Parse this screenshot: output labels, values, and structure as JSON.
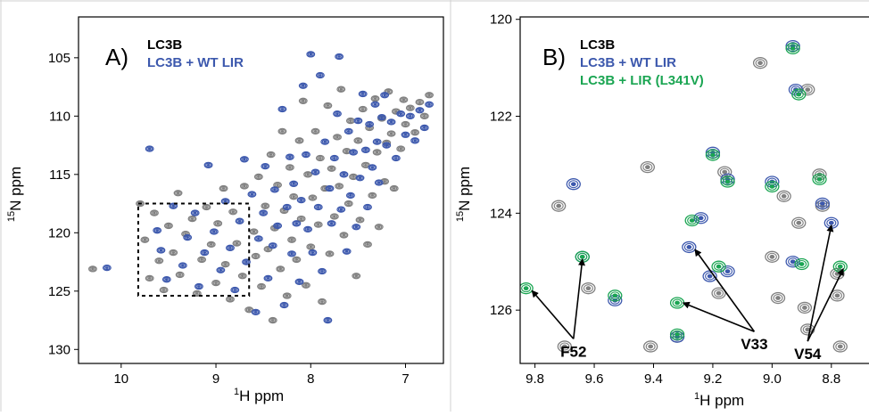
{
  "colors": {
    "lc3b": "#808080",
    "wt_lir": "#3c58ad",
    "l341v": "#1aa552",
    "frame": "#000000"
  },
  "chart_data": [
    {
      "type": "scatter",
      "panel": "A)",
      "xlabel_sup": "1",
      "xlabel": "H ppm",
      "ylabel_sup": "15",
      "ylabel": "N ppm",
      "x_reversed": true,
      "y_reversed": true,
      "xlim": [
        10.45,
        6.6
      ],
      "ylim": [
        101.5,
        131.2
      ],
      "xticks": [
        10,
        9,
        8,
        7
      ],
      "yticks": [
        105,
        110,
        115,
        120,
        125,
        130
      ],
      "legend": [
        {
          "label": "LC3B",
          "color": "#000000"
        },
        {
          "label": "LC3B + WT LIR",
          "color": "#3c58ad"
        }
      ],
      "highlight_box": {
        "x": [
          9.82,
          8.65
        ],
        "y": [
          117.5,
          125.4
        ]
      },
      "series": [
        {
          "name": "LC3B",
          "color": "#808080",
          "points": [
            [
              10.3,
              123.1
            ],
            [
              9.8,
              117.5
            ],
            [
              9.75,
              120.6
            ],
            [
              9.7,
              123.9
            ],
            [
              9.65,
              118.3
            ],
            [
              9.6,
              122.4
            ],
            [
              9.55,
              124.9
            ],
            [
              9.5,
              119.4
            ],
            [
              9.45,
              121.7
            ],
            [
              9.4,
              116.6
            ],
            [
              9.38,
              123.6
            ],
            [
              9.32,
              120.1
            ],
            [
              9.25,
              118.8
            ],
            [
              9.2,
              125.2
            ],
            [
              9.15,
              122.3
            ],
            [
              9.1,
              117.8
            ],
            [
              9.05,
              121.0
            ],
            [
              9.0,
              124.3
            ],
            [
              8.98,
              119.2
            ],
            [
              8.92,
              116.2
            ],
            [
              8.9,
              122.7
            ],
            [
              8.85,
              125.7
            ],
            [
              8.82,
              118.2
            ],
            [
              8.78,
              120.9
            ],
            [
              8.72,
              123.7
            ],
            [
              8.7,
              116.0
            ],
            [
              8.65,
              126.6
            ],
            [
              8.6,
              119.9
            ],
            [
              8.58,
              122.0
            ],
            [
              8.55,
              115.2
            ],
            [
              8.52,
              124.6
            ],
            [
              8.48,
              117.7
            ],
            [
              8.45,
              121.4
            ],
            [
              8.42,
              113.3
            ],
            [
              8.4,
              127.5
            ],
            [
              8.38,
              119.6
            ],
            [
              8.35,
              115.9
            ],
            [
              8.32,
              123.1
            ],
            [
              8.3,
              111.3
            ],
            [
              8.28,
              118.1
            ],
            [
              8.25,
              125.4
            ],
            [
              8.22,
              114.4
            ],
            [
              8.2,
              120.6
            ],
            [
              8.18,
              116.9
            ],
            [
              8.15,
              122.3
            ],
            [
              8.12,
              112.1
            ],
            [
              8.1,
              118.8
            ],
            [
              8.08,
              108.7
            ],
            [
              8.05,
              124.5
            ],
            [
              8.03,
              115.0
            ],
            [
              8.0,
              121.2
            ],
            [
              7.98,
              117.0
            ],
            [
              7.95,
              111.3
            ],
            [
              7.92,
              119.3
            ],
            [
              7.9,
              113.6
            ],
            [
              7.88,
              125.9
            ],
            [
              7.85,
              116.2
            ],
            [
              7.82,
              109.1
            ],
            [
              7.8,
              121.8
            ],
            [
              7.78,
              114.5
            ],
            [
              7.75,
              118.6
            ],
            [
              7.72,
              111.8
            ],
            [
              7.7,
              116.0
            ],
            [
              7.68,
              107.7
            ],
            [
              7.65,
              120.2
            ],
            [
              7.62,
              113.0
            ],
            [
              7.6,
              117.5
            ],
            [
              7.58,
              110.4
            ],
            [
              7.55,
              115.2
            ],
            [
              7.52,
              123.7
            ],
            [
              7.5,
              112.1
            ],
            [
              7.48,
              118.9
            ],
            [
              7.45,
              109.4
            ],
            [
              7.42,
              114.2
            ],
            [
              7.4,
              121.0
            ],
            [
              7.38,
              111.0
            ],
            [
              7.35,
              116.8
            ],
            [
              7.32,
              108.5
            ],
            [
              7.3,
              113.1
            ],
            [
              7.28,
              119.5
            ],
            [
              7.25,
              110.2
            ],
            [
              7.22,
              115.6
            ],
            [
              7.2,
              112.3
            ],
            [
              7.18,
              107.9
            ],
            [
              7.15,
              111.5
            ],
            [
              7.12,
              116.2
            ],
            [
              7.1,
              109.6
            ],
            [
              7.05,
              112.8
            ],
            [
              7.02,
              108.6
            ],
            [
              7.0,
              110.7
            ],
            [
              6.95,
              109.3
            ],
            [
              6.9,
              111.4
            ],
            [
              6.85,
              108.8
            ],
            [
              6.8,
              110.0
            ],
            [
              6.75,
              108.2
            ]
          ]
        },
        {
          "name": "LC3B + WT LIR",
          "color": "#3c58ad",
          "points": [
            [
              10.15,
              123.0
            ],
            [
              9.7,
              112.8
            ],
            [
              9.62,
              119.8
            ],
            [
              9.58,
              121.5
            ],
            [
              9.52,
              124.0
            ],
            [
              9.45,
              117.7
            ],
            [
              9.35,
              122.8
            ],
            [
              9.3,
              120.4
            ],
            [
              9.22,
              118.3
            ],
            [
              9.18,
              124.6
            ],
            [
              9.12,
              121.7
            ],
            [
              9.08,
              114.2
            ],
            [
              9.02,
              119.9
            ],
            [
              8.95,
              123.2
            ],
            [
              8.9,
              117.3
            ],
            [
              8.85,
              121.3
            ],
            [
              8.8,
              124.9
            ],
            [
              8.75,
              119.0
            ],
            [
              8.7,
              113.7
            ],
            [
              8.68,
              122.5
            ],
            [
              8.62,
              116.7
            ],
            [
              8.58,
              126.8
            ],
            [
              8.55,
              120.5
            ],
            [
              8.5,
              118.3
            ],
            [
              8.48,
              114.3
            ],
            [
              8.45,
              123.9
            ],
            [
              8.4,
              121.1
            ],
            [
              8.38,
              116.3
            ],
            [
              8.35,
              119.4
            ],
            [
              8.3,
              109.4
            ],
            [
              8.28,
              126.2
            ],
            [
              8.25,
              117.8
            ],
            [
              8.22,
              113.5
            ],
            [
              8.2,
              121.8
            ],
            [
              8.18,
              115.8
            ],
            [
              8.15,
              119.2
            ],
            [
              8.12,
              124.2
            ],
            [
              8.1,
              117.2
            ],
            [
              8.08,
              107.4
            ],
            [
              8.05,
              113.3
            ],
            [
              8.03,
              119.7
            ],
            [
              8.0,
              104.7
            ],
            [
              7.98,
              121.7
            ],
            [
              7.95,
              114.8
            ],
            [
              7.92,
              117.8
            ],
            [
              7.9,
              106.5
            ],
            [
              7.88,
              123.3
            ],
            [
              7.85,
              112.2
            ],
            [
              7.82,
              127.5
            ],
            [
              7.8,
              116.2
            ],
            [
              7.78,
              119.2
            ],
            [
              7.75,
              113.6
            ],
            [
              7.72,
              109.8
            ],
            [
              7.7,
              104.9
            ],
            [
              7.68,
              118.0
            ],
            [
              7.65,
              115.0
            ],
            [
              7.62,
              121.6
            ],
            [
              7.6,
              111.3
            ],
            [
              7.58,
              116.8
            ],
            [
              7.55,
              113.1
            ],
            [
              7.52,
              119.5
            ],
            [
              7.5,
              110.4
            ],
            [
              7.48,
              115.3
            ],
            [
              7.45,
              108.1
            ],
            [
              7.42,
              112.9
            ],
            [
              7.4,
              117.8
            ],
            [
              7.38,
              110.7
            ],
            [
              7.35,
              114.4
            ],
            [
              7.32,
              109.0
            ],
            [
              7.3,
              112.2
            ],
            [
              7.28,
              115.7
            ],
            [
              7.25,
              110.1
            ],
            [
              7.22,
              108.2
            ],
            [
              7.2,
              112.5
            ],
            [
              7.15,
              110.5
            ],
            [
              7.1,
              113.6
            ],
            [
              7.05,
              109.8
            ],
            [
              7.0,
              111.6
            ],
            [
              6.95,
              110.0
            ],
            [
              6.9,
              112.1
            ],
            [
              6.85,
              109.5
            ],
            [
              6.8,
              111.0
            ],
            [
              6.75,
              109.0
            ]
          ]
        }
      ]
    },
    {
      "type": "scatter",
      "panel": "B)",
      "xlabel_sup": "1",
      "xlabel": "H ppm",
      "ylabel_sup": "15",
      "ylabel": "N ppm",
      "x_reversed": true,
      "y_reversed": true,
      "xlim": [
        9.85,
        8.67
      ],
      "ylim": [
        119.95,
        127.1
      ],
      "xticks": [
        9.8,
        9.6,
        9.4,
        9.2,
        9.0,
        8.8
      ],
      "xtick_labels": [
        "9.8",
        "9.6",
        "9.4",
        "9.2",
        "9.0",
        "8.8"
      ],
      "yticks": [
        120,
        122,
        124,
        126
      ],
      "legend": [
        {
          "label": "LC3B",
          "color": "#000000"
        },
        {
          "label": "LC3B + WT LIR",
          "color": "#3c58ad"
        },
        {
          "label": "LC3B + LIR (L341V)",
          "color": "#1aa552"
        }
      ],
      "series": [
        {
          "name": "LC3B",
          "color": "#808080",
          "points": [
            [
              9.72,
              123.85
            ],
            [
              9.62,
              125.55
            ],
            [
              9.42,
              123.05
            ],
            [
              9.18,
              125.65
            ],
            [
              9.16,
              123.15
            ],
            [
              9.04,
              120.9
            ],
            [
              9.0,
              124.9
            ],
            [
              8.98,
              125.75
            ],
            [
              8.96,
              123.65
            ],
            [
              8.91,
              124.2
            ],
            [
              8.89,
              125.95
            ],
            [
              8.88,
              121.45
            ],
            [
              8.84,
              123.2
            ],
            [
              8.83,
              123.85
            ],
            [
              8.78,
              125.25
            ],
            [
              8.78,
              125.7
            ],
            [
              9.7,
              126.75
            ],
            [
              8.88,
              126.4
            ],
            [
              8.77,
              126.75
            ],
            [
              9.41,
              126.75
            ],
            [
              9.32,
              126.55
            ]
          ]
        },
        {
          "name": "LC3B + WT LIR",
          "color": "#3c58ad",
          "points": [
            [
              9.67,
              123.4
            ],
            [
              9.64,
              124.9
            ],
            [
              9.53,
              125.8
            ],
            [
              9.28,
              124.7
            ],
            [
              9.24,
              124.1
            ],
            [
              9.21,
              125.3
            ],
            [
              9.2,
              122.75
            ],
            [
              9.15,
              125.2
            ],
            [
              9.15,
              123.3
            ],
            [
              9.0,
              123.35
            ],
            [
              8.92,
              121.45
            ],
            [
              8.93,
              120.55
            ],
            [
              8.93,
              125.0
            ],
            [
              8.83,
              123.8
            ],
            [
              8.8,
              124.2
            ],
            [
              9.32,
              126.55
            ]
          ]
        },
        {
          "name": "LC3B + LIR (L341V)",
          "color": "#1aa552",
          "points": [
            [
              9.83,
              125.55
            ],
            [
              9.64,
              124.9
            ],
            [
              9.53,
              125.7
            ],
            [
              9.32,
              125.85
            ],
            [
              9.27,
              124.15
            ],
            [
              9.2,
              122.8
            ],
            [
              9.18,
              125.1
            ],
            [
              9.15,
              123.35
            ],
            [
              9.0,
              123.45
            ],
            [
              8.93,
              120.6
            ],
            [
              8.91,
              121.55
            ],
            [
              8.9,
              125.05
            ],
            [
              8.84,
              123.3
            ],
            [
              8.77,
              125.1
            ],
            [
              9.32,
              126.5
            ]
          ]
        }
      ],
      "annotations": [
        {
          "text": "F52",
          "x": 9.67,
          "y": 126.85,
          "targets": [
            [
              9.81,
              125.6
            ],
            [
              9.64,
              124.95
            ]
          ]
        },
        {
          "text": "V33",
          "x": 9.06,
          "y": 126.7,
          "targets": [
            [
              9.26,
              124.75
            ],
            [
              9.3,
              125.85
            ]
          ]
        },
        {
          "text": "V54",
          "x": 8.88,
          "y": 126.9,
          "targets": [
            [
              8.8,
              124.25
            ],
            [
              8.76,
              125.15
            ]
          ]
        }
      ]
    }
  ]
}
